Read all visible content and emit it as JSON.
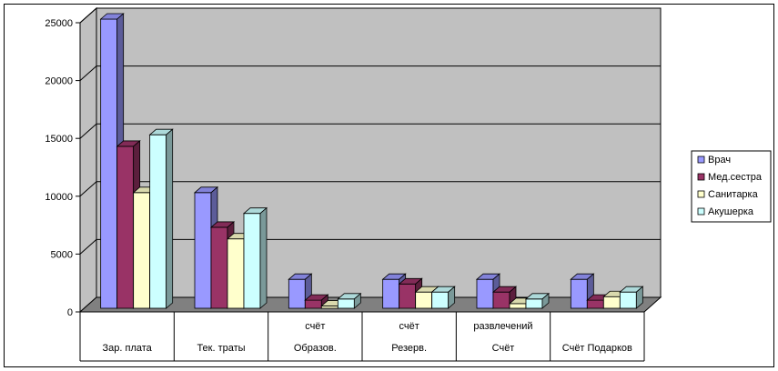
{
  "chart_data": {
    "type": "bar",
    "title": "",
    "xlabel": "",
    "ylabel": "",
    "ylim": [
      0,
      25000
    ],
    "yticks": [
      0,
      5000,
      10000,
      15000,
      20000,
      25000
    ],
    "grid": true,
    "legend_position": "right",
    "categories": [
      [
        "",
        "Зар. плата"
      ],
      [
        "",
        "Тек. траты"
      ],
      [
        "счёт",
        "Образов."
      ],
      [
        "счёт",
        "Резерв."
      ],
      [
        "развлечений",
        "Счёт"
      ],
      [
        "",
        "Счёт Подарков"
      ]
    ],
    "series": [
      {
        "name": "Врач",
        "values": [
          25000,
          10000,
          2500,
          2500,
          2500,
          2500
        ],
        "color": "#9999ff"
      },
      {
        "name": "Мед.сестра",
        "values": [
          14000,
          7000,
          700,
          2100,
          1400,
          700
        ],
        "color": "#993366"
      },
      {
        "name": "Санитарка",
        "values": [
          10000,
          6000,
          200,
          1400,
          400,
          1000
        ],
        "color": "#ffffcc"
      },
      {
        "name": "Акушерка",
        "values": [
          15000,
          8200,
          800,
          1400,
          800,
          1400
        ],
        "color": "#ccffff"
      }
    ],
    "colors": {
      "wall": "#c0c0c0",
      "floor": "#808080",
      "gridline": "#000000"
    }
  }
}
